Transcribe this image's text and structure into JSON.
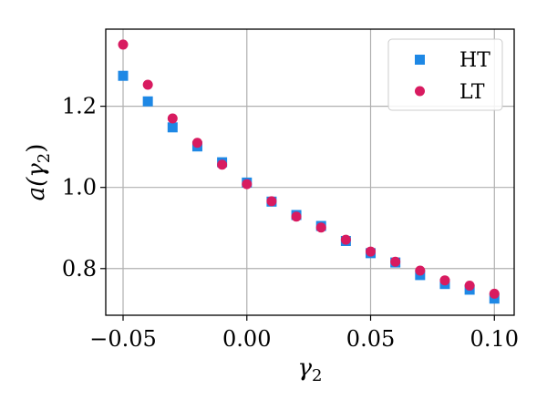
{
  "chart_data": {
    "type": "scatter",
    "title": "",
    "xlabel": "γ",
    "xlabel_sub": "2",
    "ylabel_prefix": "a(γ",
    "ylabel_sub": "2",
    "ylabel_suffix": ")",
    "xlim": [
      -0.057,
      0.108
    ],
    "ylim": [
      0.685,
      1.39
    ],
    "grid": true,
    "legend_position": "top-right",
    "xticks": [
      {
        "value": -0.05,
        "label": "−0.05"
      },
      {
        "value": 0.0,
        "label": "0.00"
      },
      {
        "value": 0.05,
        "label": "0.05"
      },
      {
        "value": 0.1,
        "label": "0.10"
      }
    ],
    "yticks": [
      {
        "value": 0.8,
        "label": "0.8"
      },
      {
        "value": 1.0,
        "label": "1.0"
      },
      {
        "value": 1.2,
        "label": "1.2"
      }
    ],
    "series": [
      {
        "name": "HT",
        "marker": "square",
        "color": "#1e88e5",
        "x": [
          -0.05,
          -0.04,
          -0.03,
          -0.02,
          -0.01,
          0.0,
          0.01,
          0.02,
          0.03,
          0.04,
          0.05,
          0.06,
          0.07,
          0.08,
          0.09,
          0.1
        ],
        "y": [
          1.275,
          1.212,
          1.148,
          1.101,
          1.062,
          1.012,
          0.965,
          0.932,
          0.905,
          0.868,
          0.838,
          0.815,
          0.784,
          0.762,
          0.748,
          0.726
        ]
      },
      {
        "name": "LT",
        "marker": "circle",
        "color": "#d81b60",
        "x": [
          -0.05,
          -0.04,
          -0.03,
          -0.02,
          -0.01,
          0.0,
          0.01,
          0.02,
          0.03,
          0.04,
          0.05,
          0.06,
          0.07,
          0.08,
          0.09,
          0.1
        ],
        "y": [
          1.352,
          1.253,
          1.17,
          1.11,
          1.056,
          1.008,
          0.966,
          0.928,
          0.901,
          0.871,
          0.842,
          0.817,
          0.795,
          0.771,
          0.758,
          0.738
        ]
      }
    ]
  }
}
